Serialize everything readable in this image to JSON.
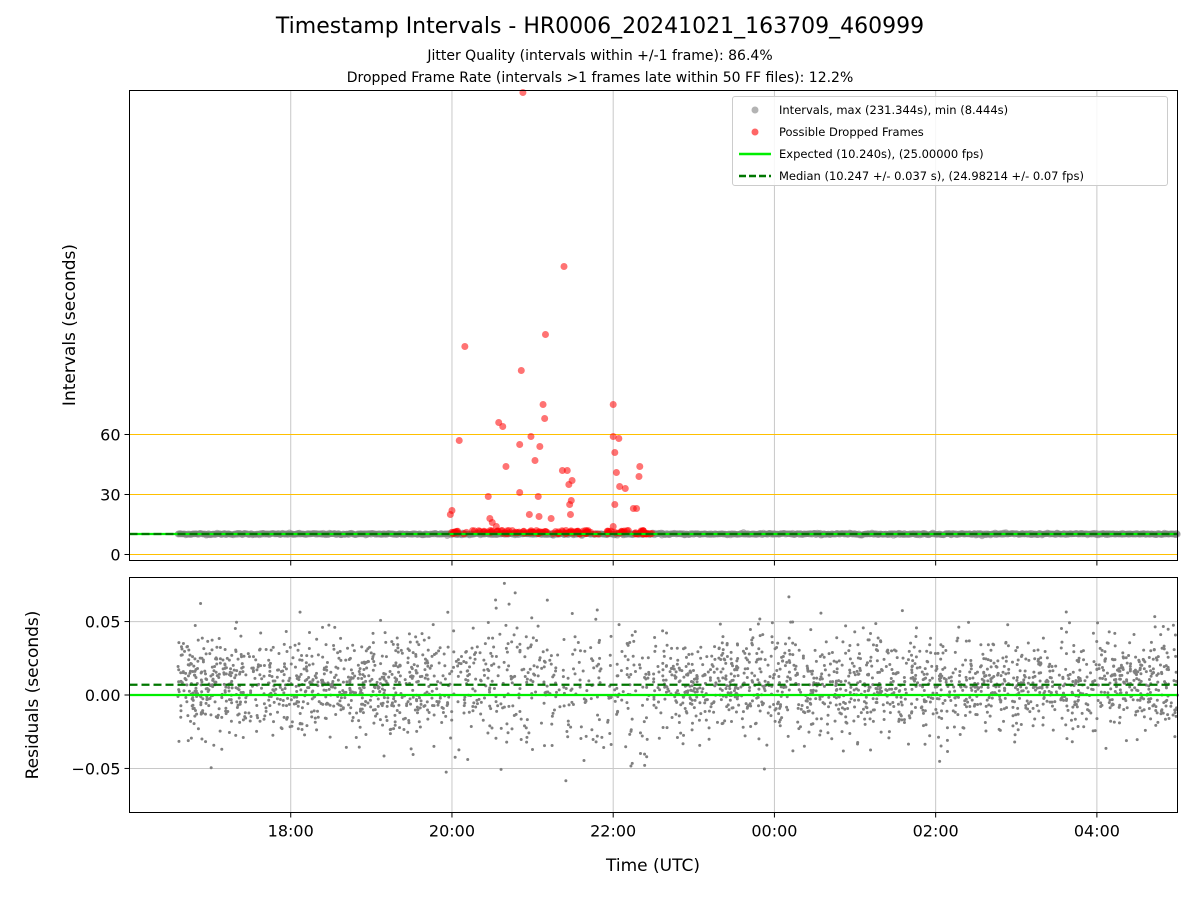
{
  "header": {
    "title": "Timestamp Intervals - HR0006_20241021_163709_460999",
    "subtitle_1": "Jitter Quality (intervals within +/-1 frame): 86.4%",
    "subtitle_2": "Dropped Frame Rate (intervals >1 frames late within 50 FF files): 12.2%"
  },
  "legend": {
    "intervals": "Intervals, max (231.344s), min (8.444s)",
    "dropped": "Possible Dropped Frames",
    "expected": "Expected (10.240s), (25.00000 fps)",
    "median": "Median (10.247 +/- 0.037 s), (24.98214 +/- 0.07 fps)"
  },
  "colors": {
    "intervals": "#808080",
    "dropped": "#ff0000",
    "expected": "#00ee00",
    "median": "#007700",
    "threshold": "#ffc000",
    "grid": "#c8c8c8"
  },
  "chart_data": [
    {
      "type": "scatter",
      "title": "Timestamp Intervals - HR0006_20241021_163709_460999",
      "xlabel": "",
      "ylabel": "Intervals (seconds)",
      "x_unit": "hours since 00:00 UTC of 2024-10-21",
      "xlim": [
        16.0,
        29.0
      ],
      "ylim": [
        -3,
        232
      ],
      "x_ticks": [
        18,
        20,
        22,
        24,
        26,
        28
      ],
      "x_tick_labels": [
        "18:00",
        "20:00",
        "22:00",
        "00:00",
        "02:00",
        "04:00"
      ],
      "y_ticks": [
        0,
        30,
        60
      ],
      "y_tick_labels": [
        "0",
        "30",
        "60"
      ],
      "horizontal_lines": [
        0,
        30,
        60
      ],
      "expected": 10.24,
      "median": 10.247,
      "series": [
        {
          "name": "Possible Dropped Frames",
          "x": [
            20.88,
            21.39,
            21.16,
            20.16,
            20.86,
            21.13,
            22.0,
            21.15,
            20.58,
            20.63,
            20.84,
            20.98,
            22.07,
            22.0,
            20.09,
            21.09,
            22.02,
            21.03,
            22.33,
            20.67,
            21.43,
            21.37,
            22.04,
            22.32,
            21.49,
            21.45,
            22.08,
            20.84,
            20.45,
            22.15,
            21.07,
            21.48,
            21.46,
            22.25,
            22.29,
            20.0,
            20.47,
            19.98,
            21.47,
            22.02,
            21.08,
            22.0,
            20.5,
            20.55,
            21.23,
            20.96
          ],
          "y": [
            231,
            144,
            110,
            104,
            92,
            75,
            75,
            68,
            66,
            64,
            55,
            59,
            58,
            59,
            57,
            54,
            51,
            47,
            44,
            44,
            42,
            42,
            41,
            39,
            37,
            35,
            34,
            31,
            29,
            33,
            29,
            27,
            25,
            23,
            23,
            22,
            18,
            20,
            20,
            25,
            19,
            14,
            16,
            14,
            18,
            20
          ]
        }
      ]
    },
    {
      "type": "scatter",
      "title": "",
      "xlabel": "Time (UTC)",
      "ylabel": "Residuals (seconds)",
      "xlim": [
        16.0,
        29.0
      ],
      "ylim": [
        -0.08,
        0.08
      ],
      "x_ticks": [
        18,
        20,
        22,
        24,
        26,
        28
      ],
      "x_tick_labels": [
        "18:00",
        "20:00",
        "22:00",
        "00:00",
        "02:00",
        "04:00"
      ],
      "y_ticks": [
        -0.05,
        0.0,
        0.05
      ],
      "y_tick_labels": [
        "−0.05",
        "0.00",
        "0.05"
      ],
      "expected": 0.0,
      "median": 0.007,
      "data_x_range": [
        16.6,
        29.0
      ],
      "data_gap": [
        22.45,
        22.5
      ],
      "residual_spread": 0.02
    }
  ]
}
